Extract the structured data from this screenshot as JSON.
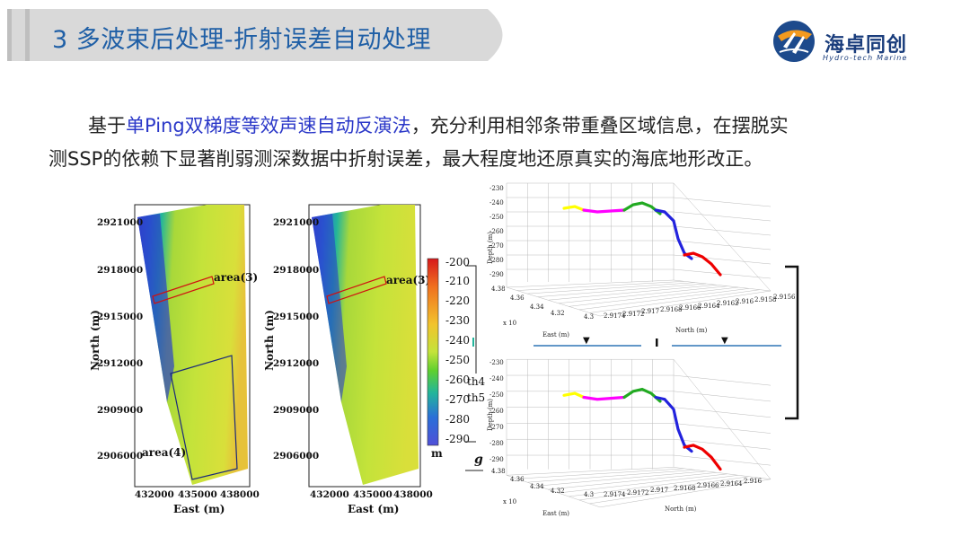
{
  "header": {
    "title": "3 多波束后处理-折射误差自动处理",
    "bar_color": "#d9d9d9",
    "accent_color": "#1f5fa6"
  },
  "logo": {
    "icon": "hydro-tech-logo-icon",
    "name": "海卓同创",
    "subtitle": "Hydro-tech Marine"
  },
  "body_text": {
    "prefix": "基于",
    "highlight": "单Ping双梯度等效声速自动反演法",
    "line1_rest": "，充分利用相邻条带重叠区域信息，在摆脱实",
    "line2": "测SSP的依赖下显著削弱测深数据中折射误差，最大程度地还原真实的海底地形改正。",
    "highlight_color": "#2a37c8"
  },
  "maps": {
    "y_ticks": [
      "2921000",
      "2918000",
      "2915000",
      "2912000",
      "2909000",
      "2906000"
    ],
    "x_ticks": [
      "432000",
      "435000",
      "438000"
    ],
    "xlabel": "East (m)",
    "ylabel": "North (m)",
    "left_annotations": [
      "area(3)",
      "area(4)"
    ],
    "right_annotations": [
      "area(3)"
    ]
  },
  "colorbar": {
    "ticks": [
      "-200",
      "-210",
      "-220",
      "-230",
      "-240",
      "-250",
      "-260",
      "-270",
      "-280",
      "-290"
    ],
    "unit": "m",
    "side_labels": [
      "th4",
      "th5"
    ],
    "colors": [
      "#d7191c",
      "#f0701e",
      "#f2c32c",
      "#c4e33a",
      "#5fd02e",
      "#22b59b",
      "#2a6fd8",
      "#3b3bd0"
    ]
  },
  "plots3d": {
    "ylabel": "Depth (m)",
    "z_ticks": [
      "-230",
      "-240",
      "-250",
      "-260",
      "-270",
      "-280",
      "-290"
    ],
    "east_ticks": [
      "4.38",
      "4.36",
      "4.34",
      "4.32",
      "4.3"
    ],
    "east_exp": "x 10",
    "east_label": "East (m)",
    "north_ticks_top": [
      "2.9174",
      "2.9172",
      "2.917",
      "2.9168",
      "2.9166",
      "2.9164",
      "2.9162",
      "2.916",
      "2.9158",
      "2.9156"
    ],
    "north_ticks_bottom": [
      "2.9174",
      "2.9172",
      "2.917",
      "2.9168",
      "2.9166",
      "2.9164",
      "2.916"
    ],
    "north_label": "North (m)",
    "segment_colors": [
      "#ffff00",
      "#ff00ff",
      "#22aa22",
      "#2222dd",
      "#ee0000"
    ]
  },
  "divider": {
    "left_marker": "▼",
    "right_marker": "▼",
    "color": "#2e75b6"
  },
  "side_fragment": {
    "text": "g"
  }
}
